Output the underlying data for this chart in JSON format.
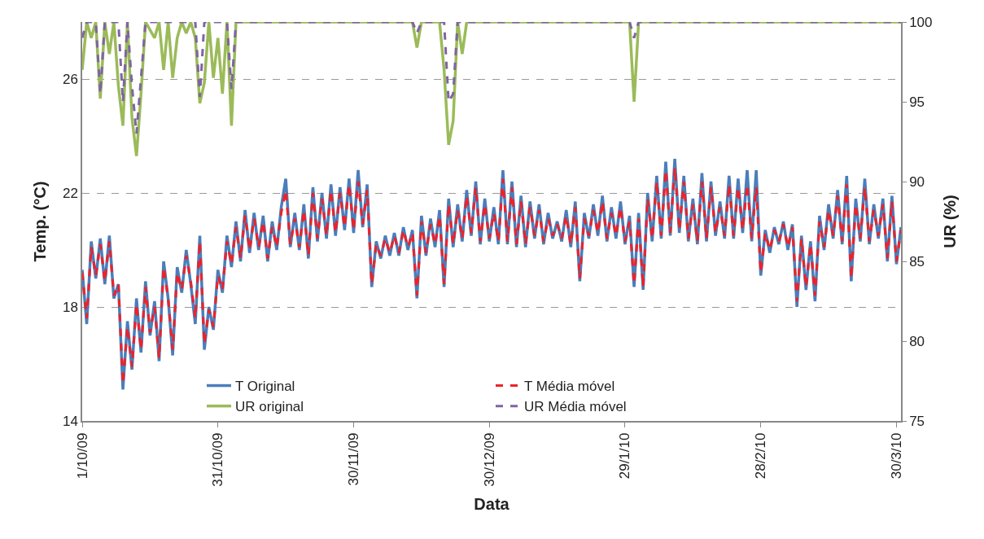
{
  "chart_data": {
    "type": "line",
    "xlabel": "Data",
    "ylabel": "Temp. (°C)",
    "y2label": "UR (%)",
    "xlim": [
      "2009-10-01",
      "2010-03-31"
    ],
    "xticks": [
      {
        "value": "2009-10-01",
        "label": "1/10/09"
      },
      {
        "value": "2009-10-31",
        "label": "31/10/09"
      },
      {
        "value": "2009-11-30",
        "label": "30/11/09"
      },
      {
        "value": "2009-12-30",
        "label": "30/12/09"
      },
      {
        "value": "2010-01-29",
        "label": "29/1/10"
      },
      {
        "value": "2010-02-28",
        "label": "28/2/10"
      },
      {
        "value": "2010-03-30",
        "label": "30/3/10"
      }
    ],
    "ylim": [
      14,
      28
    ],
    "yticks": [
      14,
      18,
      22,
      26
    ],
    "y2lim": [
      75,
      100
    ],
    "y2ticks": [
      75,
      80,
      85,
      90,
      95,
      100
    ],
    "grid": "y",
    "legend": "bottom",
    "marker": "none",
    "x": [
      "2009-10-01",
      "2009-10-02",
      "2009-10-03",
      "2009-10-04",
      "2009-10-05",
      "2009-10-06",
      "2009-10-07",
      "2009-10-08",
      "2009-10-09",
      "2009-10-10",
      "2009-10-11",
      "2009-10-12",
      "2009-10-13",
      "2009-10-14",
      "2009-10-15",
      "2009-10-16",
      "2009-10-17",
      "2009-10-18",
      "2009-10-19",
      "2009-10-20",
      "2009-10-21",
      "2009-10-22",
      "2009-10-23",
      "2009-10-24",
      "2009-10-25",
      "2009-10-26",
      "2009-10-27",
      "2009-10-28",
      "2009-10-29",
      "2009-10-30",
      "2009-10-31",
      "2009-11-01",
      "2009-11-02",
      "2009-11-03",
      "2009-11-04",
      "2009-11-05",
      "2009-11-06",
      "2009-11-07",
      "2009-11-08",
      "2009-11-09",
      "2009-11-10",
      "2009-11-11",
      "2009-11-12",
      "2009-11-13",
      "2009-11-14",
      "2009-11-15",
      "2009-11-16",
      "2009-11-17",
      "2009-11-18",
      "2009-11-19",
      "2009-11-20",
      "2009-11-21",
      "2009-11-22",
      "2009-11-23",
      "2009-11-24",
      "2009-11-25",
      "2009-11-26",
      "2009-11-27",
      "2009-11-28",
      "2009-11-29",
      "2009-11-30",
      "2009-12-01",
      "2009-12-02",
      "2009-12-03",
      "2009-12-04",
      "2009-12-05",
      "2009-12-06",
      "2009-12-07",
      "2009-12-08",
      "2009-12-09",
      "2009-12-10",
      "2009-12-11",
      "2009-12-12",
      "2009-12-13",
      "2009-12-14",
      "2009-12-15",
      "2009-12-16",
      "2009-12-17",
      "2009-12-18",
      "2009-12-19",
      "2009-12-20",
      "2009-12-21",
      "2009-12-22",
      "2009-12-23",
      "2009-12-24",
      "2009-12-25",
      "2009-12-26",
      "2009-12-27",
      "2009-12-28",
      "2009-12-29",
      "2009-12-30",
      "2009-12-31",
      "2010-01-01",
      "2010-01-02",
      "2010-01-03",
      "2010-01-04",
      "2010-01-05",
      "2010-01-06",
      "2010-01-07",
      "2010-01-08",
      "2010-01-09",
      "2010-01-10",
      "2010-01-11",
      "2010-01-12",
      "2010-01-13",
      "2010-01-14",
      "2010-01-15",
      "2010-01-16",
      "2010-01-17",
      "2010-01-18",
      "2010-01-19",
      "2010-01-20",
      "2010-01-21",
      "2010-01-22",
      "2010-01-23",
      "2010-01-24",
      "2010-01-25",
      "2010-01-26",
      "2010-01-27",
      "2010-01-28",
      "2010-01-29",
      "2010-01-30",
      "2010-01-31",
      "2010-02-01",
      "2010-02-02",
      "2010-02-03",
      "2010-02-04",
      "2010-02-05",
      "2010-02-06",
      "2010-02-07",
      "2010-02-08",
      "2010-02-09",
      "2010-02-10",
      "2010-02-11",
      "2010-02-12",
      "2010-02-13",
      "2010-02-14",
      "2010-02-15",
      "2010-02-16",
      "2010-02-17",
      "2010-02-18",
      "2010-02-19",
      "2010-02-20",
      "2010-02-21",
      "2010-02-22",
      "2010-02-23",
      "2010-02-24",
      "2010-02-25",
      "2010-02-26",
      "2010-02-27",
      "2010-02-28",
      "2010-03-01",
      "2010-03-02",
      "2010-03-03",
      "2010-03-04",
      "2010-03-05",
      "2010-03-06",
      "2010-03-07",
      "2010-03-08",
      "2010-03-09",
      "2010-03-10",
      "2010-03-11",
      "2010-03-12",
      "2010-03-13",
      "2010-03-14",
      "2010-03-15",
      "2010-03-16",
      "2010-03-17",
      "2010-03-18",
      "2010-03-19",
      "2010-03-20",
      "2010-03-21",
      "2010-03-22",
      "2010-03-23",
      "2010-03-24",
      "2010-03-25",
      "2010-03-26",
      "2010-03-27",
      "2010-03-28",
      "2010-03-29",
      "2010-03-30",
      "2010-03-31"
    ],
    "series": [
      {
        "name": "T Original",
        "color": "#4a7ebb",
        "line_style": "solid",
        "values": [
          19.3,
          17.4,
          20.3,
          19.0,
          20.4,
          18.8,
          20.5,
          18.3,
          18.8,
          15.1,
          17.5,
          15.8,
          18.3,
          16.4,
          18.9,
          17.0,
          18.2,
          16.1,
          19.6,
          18.3,
          16.3,
          19.4,
          18.5,
          20.0,
          18.8,
          17.4,
          20.5,
          16.5,
          18.0,
          17.2,
          19.3,
          18.5,
          20.5,
          19.4,
          21.0,
          19.6,
          21.4,
          19.9,
          21.3,
          20.0,
          21.2,
          19.6,
          21.0,
          20.0,
          21.5,
          22.5,
          20.1,
          21.3,
          20.0,
          21.6,
          19.7,
          22.2,
          20.3,
          22.0,
          20.4,
          22.3,
          20.5,
          22.2,
          20.7,
          22.5,
          20.6,
          22.8,
          20.8,
          22.3,
          18.7,
          20.3,
          19.7,
          20.5,
          19.8,
          20.6,
          19.8,
          20.8,
          20.0,
          20.7,
          18.3,
          21.2,
          19.8,
          21.1,
          20.1,
          21.4,
          18.7,
          21.8,
          20.1,
          21.6,
          20.3,
          22.1,
          20.5,
          22.4,
          20.2,
          21.8,
          20.3,
          21.5,
          20.2,
          22.8,
          20.2,
          22.4,
          20.1,
          21.9,
          20.1,
          21.7,
          20.4,
          21.6,
          20.2,
          21.3,
          20.4,
          21.0,
          20.3,
          21.4,
          20.1,
          21.7,
          18.9,
          21.3,
          20.4,
          21.6,
          20.5,
          21.9,
          20.3,
          21.5,
          20.4,
          21.7,
          20.2,
          21.2,
          18.7,
          21.3,
          18.6,
          22.0,
          20.3,
          22.6,
          20.4,
          23.1,
          20.5,
          23.2,
          20.6,
          22.6,
          20.3,
          21.8,
          20.2,
          22.7,
          20.3,
          22.4,
          20.5,
          21.7,
          20.4,
          22.6,
          20.4,
          22.5,
          20.6,
          22.8,
          20.3,
          22.8,
          19.1,
          20.7,
          19.9,
          20.8,
          20.2,
          21.0,
          20.0,
          20.9,
          18.0,
          20.5,
          18.6,
          20.3,
          18.2,
          21.2,
          20.0,
          21.6,
          20.4,
          22.1,
          20.2,
          22.6,
          18.9,
          21.8,
          20.3,
          22.5,
          20.2,
          21.6,
          20.4,
          21.8,
          19.6,
          21.9,
          19.5,
          20.8
        ]
      },
      {
        "name": "T Média móvel",
        "color": "#ee2229",
        "line_style": "dashed",
        "values": [
          19.2,
          17.6,
          20.1,
          19.1,
          20.2,
          18.9,
          20.3,
          18.4,
          18.8,
          15.3,
          17.3,
          15.9,
          18.1,
          16.5,
          18.7,
          17.1,
          18.0,
          16.2,
          19.4,
          18.3,
          16.5,
          19.2,
          18.6,
          19.8,
          18.9,
          17.6,
          20.3,
          16.7,
          17.9,
          17.3,
          19.1,
          18.6,
          20.3,
          19.5,
          20.8,
          19.7,
          21.2,
          20.0,
          21.1,
          20.1,
          21.0,
          19.7,
          20.8,
          20.1,
          21.3,
          22.1,
          20.2,
          21.1,
          20.1,
          21.4,
          19.8,
          22.0,
          20.4,
          21.8,
          20.5,
          22.1,
          20.6,
          22.0,
          20.8,
          22.3,
          20.7,
          22.4,
          20.9,
          22.1,
          18.8,
          20.2,
          19.8,
          20.4,
          19.9,
          20.5,
          19.9,
          20.7,
          20.1,
          20.6,
          18.4,
          21.0,
          19.9,
          20.9,
          20.2,
          21.2,
          18.8,
          21.6,
          20.2,
          21.4,
          20.4,
          21.9,
          20.6,
          22.2,
          20.3,
          21.6,
          20.4,
          21.3,
          20.3,
          22.5,
          20.3,
          22.2,
          20.2,
          21.7,
          20.2,
          21.5,
          20.5,
          21.4,
          20.3,
          21.1,
          20.5,
          20.9,
          20.4,
          21.2,
          20.2,
          21.5,
          19.0,
          21.1,
          20.5,
          21.4,
          20.6,
          21.7,
          20.4,
          21.3,
          20.5,
          21.5,
          20.3,
          21.0,
          18.8,
          21.1,
          18.7,
          21.8,
          20.4,
          22.4,
          20.5,
          22.8,
          20.6,
          22.9,
          20.7,
          22.4,
          20.4,
          21.6,
          20.3,
          22.4,
          20.4,
          22.2,
          20.6,
          21.5,
          20.5,
          22.3,
          20.5,
          22.2,
          20.7,
          22.3,
          20.4,
          22.2,
          19.2,
          20.6,
          20.0,
          20.7,
          20.3,
          20.9,
          20.1,
          20.8,
          18.2,
          20.4,
          18.7,
          20.2,
          18.4,
          21.0,
          20.1,
          21.4,
          20.5,
          21.9,
          20.3,
          22.3,
          19.0,
          21.6,
          20.4,
          22.2,
          20.3,
          21.4,
          20.5,
          21.6,
          19.7,
          21.7,
          19.6,
          20.7
        ]
      },
      {
        "name": "UR original",
        "color": "#9bbb59",
        "line_style": "solid",
        "axis": "y2",
        "x": [
          "2009-10-01",
          "2009-10-02",
          "2009-10-03",
          "2009-10-04",
          "2009-10-05",
          "2009-10-06",
          "2009-10-07",
          "2009-10-08",
          "2009-10-09",
          "2009-10-10",
          "2009-10-11",
          "2009-10-12",
          "2009-10-13",
          "2009-10-14",
          "2009-10-15",
          "2009-10-17",
          "2009-10-18",
          "2009-10-19",
          "2009-10-20",
          "2009-10-21",
          "2009-10-22",
          "2009-10-23",
          "2009-10-24",
          "2009-10-25",
          "2009-10-26",
          "2009-10-27",
          "2009-10-28",
          "2009-10-29",
          "2009-10-30",
          "2009-10-31",
          "2009-11-01",
          "2009-11-02",
          "2009-11-03",
          "2009-11-04",
          "2009-11-05",
          "2009-12-13",
          "2009-12-14",
          "2009-12-15",
          "2009-12-19",
          "2009-12-20",
          "2009-12-21",
          "2009-12-22",
          "2009-12-23",
          "2009-12-24",
          "2009-12-25",
          "2010-01-30",
          "2010-01-31",
          "2010-02-01",
          "2010-03-31"
        ],
        "values": [
          97.0,
          100,
          99.0,
          100,
          95.2,
          100,
          98.0,
          100,
          96.0,
          93.5,
          100,
          94.0,
          91.6,
          95.5,
          100,
          99.0,
          100,
          97.0,
          100,
          96.5,
          99.0,
          100,
          99.3,
          100,
          99.0,
          94.9,
          96.2,
          100,
          96.5,
          99.0,
          95.5,
          100,
          93.5,
          100,
          100,
          100,
          98.4,
          100,
          100,
          97.0,
          92.3,
          93.8,
          100,
          98.0,
          100,
          100,
          95.0,
          100,
          100
        ]
      },
      {
        "name": "UR Média móvel",
        "color": "#8064a2",
        "line_style": "dashed",
        "axis": "y2",
        "x": [
          "2009-10-01",
          "2009-10-02",
          "2009-10-04",
          "2009-10-05",
          "2009-10-06",
          "2009-10-09",
          "2009-10-10",
          "2009-10-11",
          "2009-10-12",
          "2009-10-13",
          "2009-10-14",
          "2009-10-15",
          "2009-10-26",
          "2009-10-27",
          "2009-10-28",
          "2009-11-02",
          "2009-11-03",
          "2009-11-04",
          "2009-12-13",
          "2009-12-14",
          "2009-12-15",
          "2009-12-20",
          "2009-12-21",
          "2009-12-22",
          "2009-12-23",
          "2010-01-30",
          "2010-01-31",
          "2010-02-01",
          "2010-03-31"
        ],
        "values": [
          99.0,
          100,
          100,
          95.5,
          100,
          100,
          95.0,
          100,
          96.0,
          93.0,
          96.5,
          100,
          100,
          95.3,
          100,
          100,
          95.8,
          100,
          100,
          99.3,
          100,
          100,
          95.0,
          95.5,
          100,
          100,
          99.0,
          100,
          100
        ]
      }
    ]
  }
}
